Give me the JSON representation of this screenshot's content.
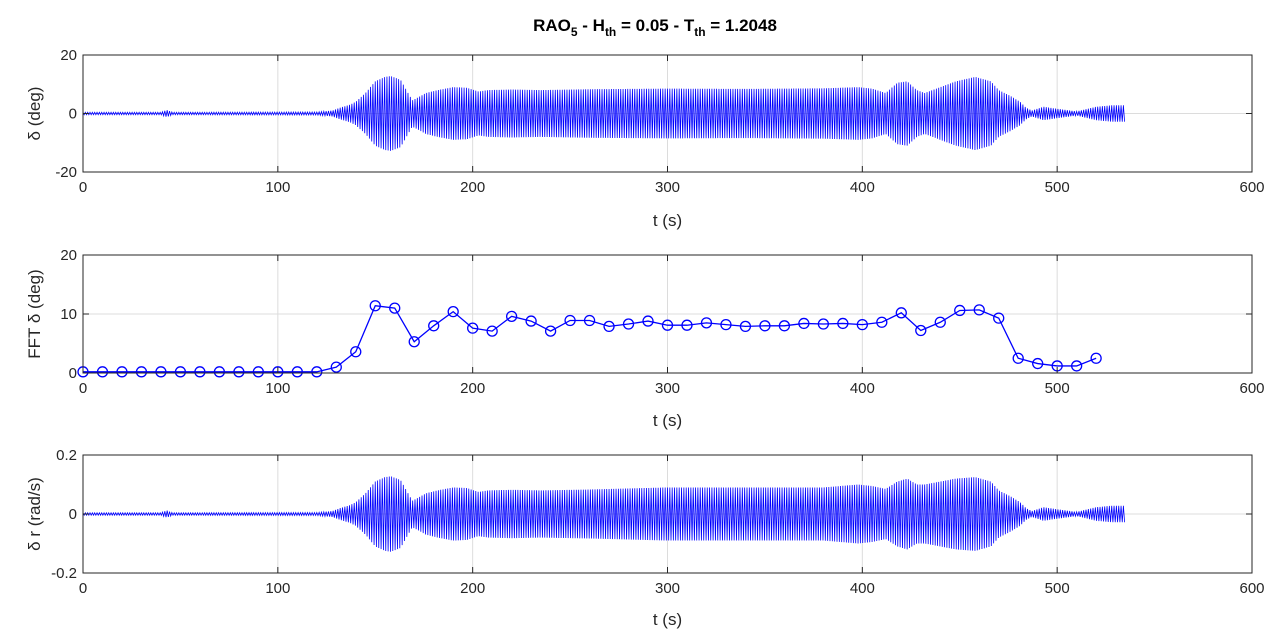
{
  "title": {
    "main": "RAO",
    "main_sub": "5",
    "h_prefix": " - H",
    "h_sub": "th",
    "h_value": " = 0.05 - T",
    "t_sub": "th",
    "t_value": " = 1.2048"
  },
  "colors": {
    "series": "#0000ff",
    "grid": "#dcdcdc",
    "axes": "#262626"
  },
  "chart_data": [
    {
      "type": "area",
      "xlabel": "t (s)",
      "ylabel": "δ (deg)",
      "xlim": [
        0,
        600
      ],
      "ylim": [
        -20,
        20
      ],
      "xticks": [
        0,
        100,
        200,
        300,
        400,
        500,
        600
      ],
      "yticks": [
        20,
        0,
        -20
      ],
      "ytick_labels": [
        "20",
        "0",
        "-20"
      ],
      "grid": true,
      "envelope": {
        "t": [
          0,
          40,
          43,
          46,
          120,
          128,
          132,
          137,
          140,
          145,
          150,
          155,
          158,
          163,
          166,
          169,
          172,
          176,
          182,
          190,
          197,
          203,
          208,
          220,
          235,
          260,
          300,
          340,
          380,
          398,
          405,
          412,
          418,
          423,
          428,
          432,
          440,
          448,
          458,
          466,
          470,
          476,
          481,
          484,
          487,
          493,
          500,
          510,
          520,
          528,
          535
        ],
        "amp": [
          0.4,
          0.4,
          1.2,
          0.4,
          0.5,
          1.0,
          2.0,
          3.0,
          4.0,
          7.0,
          11.0,
          12.5,
          12.8,
          11.5,
          8.0,
          4.5,
          5.5,
          7.0,
          8.0,
          9.0,
          8.8,
          7.5,
          8.0,
          8.2,
          8.0,
          8.3,
          8.5,
          8.4,
          8.6,
          9.0,
          8.5,
          7.0,
          10.5,
          11.0,
          8.0,
          7.0,
          9.0,
          11.0,
          12.5,
          11.0,
          8.0,
          6.0,
          4.0,
          2.0,
          1.0,
          2.3,
          1.6,
          0.7,
          2.3,
          2.8,
          2.8
        ]
      }
    },
    {
      "type": "line",
      "marker": "circle",
      "xlabel": "t (s)",
      "ylabel": "FFT  δ (deg)",
      "xlim": [
        0,
        600
      ],
      "ylim": [
        0,
        20
      ],
      "xticks": [
        0,
        100,
        200,
        300,
        400,
        500,
        600
      ],
      "yticks": [
        20,
        10,
        0
      ],
      "ytick_labels": [
        "20",
        "10",
        "0"
      ],
      "grid": true,
      "x": [
        0,
        10,
        20,
        30,
        40,
        50,
        60,
        70,
        80,
        90,
        100,
        110,
        120,
        130,
        140,
        150,
        160,
        170,
        180,
        190,
        200,
        210,
        220,
        230,
        240,
        250,
        260,
        270,
        280,
        290,
        300,
        310,
        320,
        330,
        340,
        350,
        360,
        370,
        380,
        390,
        400,
        410,
        420,
        430,
        440,
        450,
        460,
        470,
        480,
        490,
        500,
        510,
        520
      ],
      "y": [
        0.2,
        0.2,
        0.2,
        0.2,
        0.2,
        0.2,
        0.2,
        0.2,
        0.2,
        0.2,
        0.2,
        0.2,
        0.2,
        1.0,
        3.6,
        11.4,
        11.0,
        5.3,
        8.0,
        10.4,
        7.6,
        7.1,
        9.6,
        8.8,
        7.1,
        8.9,
        8.9,
        7.9,
        8.3,
        8.8,
        8.1,
        8.1,
        8.5,
        8.2,
        7.9,
        8.0,
        8.0,
        8.4,
        8.3,
        8.4,
        8.2,
        8.6,
        10.2,
        7.2,
        8.6,
        10.6,
        10.7,
        9.3,
        2.5,
        1.6,
        1.2,
        1.2,
        2.5
      ]
    },
    {
      "type": "area",
      "xlabel": "t (s)",
      "ylabel": "δ r (rad/s)",
      "xlim": [
        0,
        600
      ],
      "ylim": [
        -0.2,
        0.2
      ],
      "xticks": [
        0,
        100,
        200,
        300,
        400,
        500,
        600
      ],
      "yticks": [
        0.2,
        0,
        -0.2
      ],
      "ytick_labels": [
        "0.2",
        "0",
        "-0.2"
      ],
      "grid": true,
      "envelope": {
        "t": [
          0,
          40,
          43,
          46,
          120,
          128,
          132,
          137,
          140,
          145,
          150,
          155,
          158,
          163,
          166,
          169,
          172,
          176,
          182,
          190,
          197,
          203,
          208,
          220,
          235,
          260,
          300,
          340,
          380,
          398,
          405,
          412,
          418,
          423,
          428,
          432,
          440,
          448,
          458,
          466,
          470,
          476,
          481,
          484,
          487,
          493,
          500,
          510,
          520,
          528,
          535
        ],
        "amp": [
          0.004,
          0.004,
          0.012,
          0.004,
          0.005,
          0.01,
          0.02,
          0.03,
          0.04,
          0.07,
          0.11,
          0.125,
          0.128,
          0.115,
          0.08,
          0.045,
          0.055,
          0.07,
          0.08,
          0.09,
          0.088,
          0.075,
          0.08,
          0.082,
          0.08,
          0.083,
          0.09,
          0.09,
          0.09,
          0.1,
          0.095,
          0.085,
          0.11,
          0.12,
          0.1,
          0.1,
          0.11,
          0.12,
          0.125,
          0.11,
          0.08,
          0.06,
          0.04,
          0.02,
          0.01,
          0.023,
          0.016,
          0.007,
          0.023,
          0.028,
          0.028
        ]
      }
    }
  ]
}
